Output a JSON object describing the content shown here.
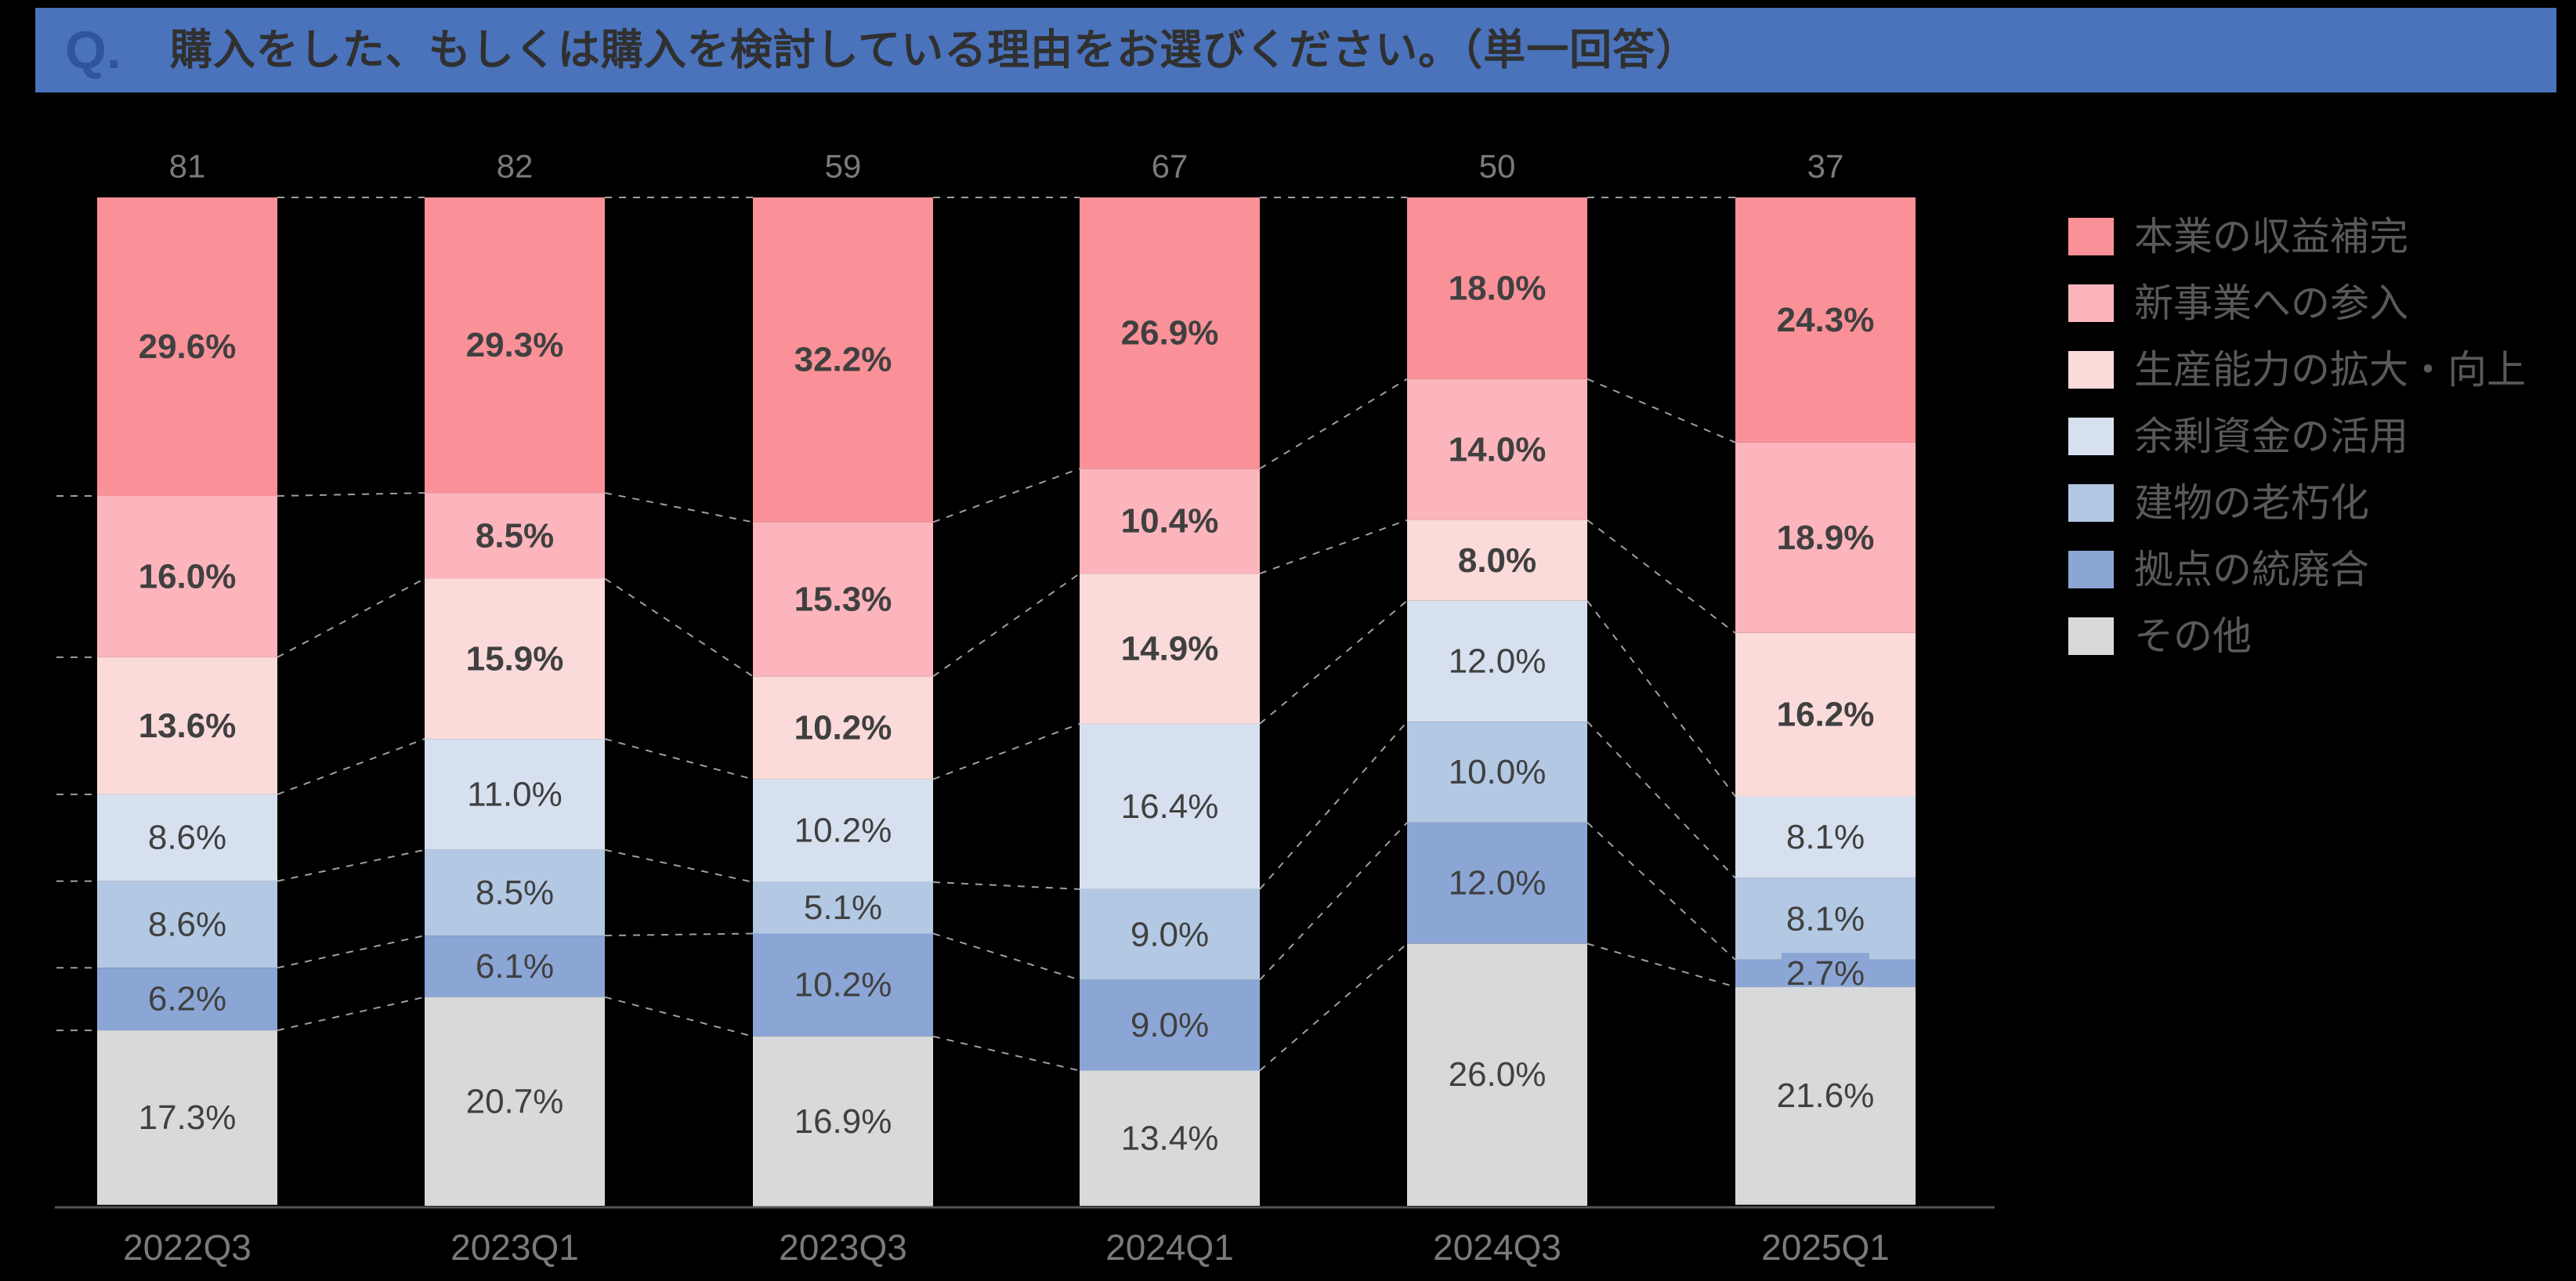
{
  "page": {
    "background": "#000000"
  },
  "banner": {
    "q_label": "Q.",
    "q_color": "#30549E",
    "title": "購入をした、もしくは購入を検討している理由をお選びください。（単一回答）",
    "title_color": "#303030",
    "bg": "#4A73BC"
  },
  "chart_data": {
    "type": "bar",
    "variant": "stacked-100-percent-column",
    "title": "",
    "xlabel": "",
    "ylabel": "",
    "grid": false,
    "legend_position": "right",
    "categories": [
      "2022Q3",
      "2023Q1",
      "2023Q3",
      "2024Q1",
      "2024Q3",
      "2025Q1"
    ],
    "counts": [
      81,
      82,
      59,
      67,
      50,
      37
    ],
    "series": [
      {
        "name": "本業の収益補完",
        "color": "#FA9198",
        "bold_labels": true,
        "values": [
          29.6,
          29.3,
          32.2,
          26.9,
          18.0,
          24.3
        ]
      },
      {
        "name": "新事業への参入",
        "color": "#FCB5BC",
        "bold_labels": true,
        "values": [
          16.0,
          8.5,
          15.3,
          10.4,
          14.0,
          18.9
        ]
      },
      {
        "name": "生産能力の拡大・向上",
        "color": "#FBDADA",
        "bold_labels": true,
        "values": [
          13.6,
          15.9,
          10.2,
          14.9,
          8.0,
          16.2
        ]
      },
      {
        "name": "余剰資金の活用",
        "color": "#D7E0EF",
        "bold_labels": false,
        "values": [
          8.6,
          11.0,
          10.2,
          16.4,
          12.0,
          8.1
        ]
      },
      {
        "name": "建物の老朽化",
        "color": "#B2C8E3",
        "bold_labels": false,
        "values": [
          8.6,
          8.5,
          5.1,
          9.0,
          10.0,
          8.1
        ]
      },
      {
        "name": "拠点の統廃合",
        "color": "#8BA6D5",
        "bold_labels": false,
        "values": [
          6.2,
          6.1,
          10.2,
          9.0,
          12.0,
          2.7
        ]
      },
      {
        "name": "その他",
        "color": "#D7D9DB",
        "bold_labels": false,
        "values": [
          17.3,
          20.7,
          16.9,
          13.4,
          26.0,
          21.6
        ]
      }
    ],
    "label_suffix": "%",
    "label_decimals": 1,
    "label_color": "#404040",
    "count_color": "#7A7A7A",
    "category_color": "#7A7A7A",
    "legend_text_color": "#595959",
    "axis_line_color": "#555555",
    "connector_color": "#9F9F9F"
  }
}
